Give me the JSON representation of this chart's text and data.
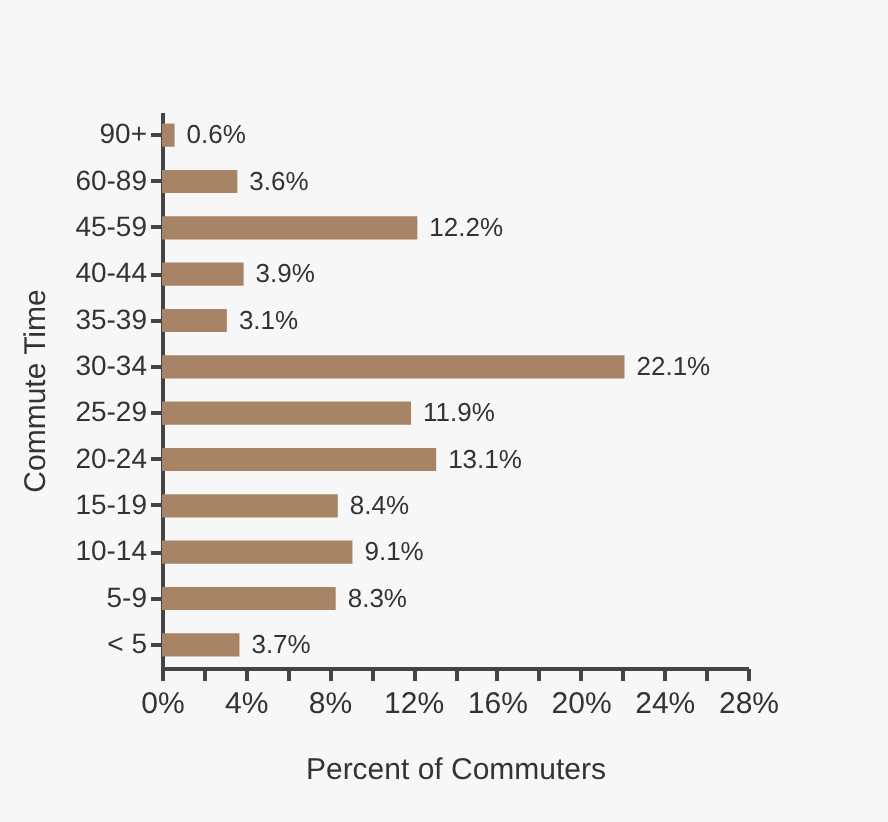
{
  "chart_data": {
    "type": "bar",
    "orientation": "horizontal",
    "xlabel": "Percent of Commuters",
    "ylabel": "Commute Time",
    "categories": [
      "90+",
      "60-89",
      "45-59",
      "40-44",
      "35-39",
      "30-34",
      "25-29",
      "20-24",
      "15-19",
      "10-14",
      "5-9",
      "< 5"
    ],
    "values": [
      0.6,
      3.6,
      12.2,
      3.9,
      3.1,
      22.1,
      11.9,
      13.1,
      8.4,
      9.1,
      8.3,
      3.7
    ],
    "value_labels": [
      "0.6%",
      "3.6%",
      "12.2%",
      "3.9%",
      "3.1%",
      "22.1%",
      "11.9%",
      "13.1%",
      "8.4%",
      "9.1%",
      "8.3%",
      "3.7%"
    ],
    "color": "#a88466",
    "xlim": [
      0,
      28
    ],
    "xticks": [
      {
        "value": 0,
        "label": "0%"
      },
      {
        "value": 2,
        "label": null
      },
      {
        "value": 4,
        "label": "4%"
      },
      {
        "value": 6,
        "label": null
      },
      {
        "value": 8,
        "label": "8%"
      },
      {
        "value": 10,
        "label": null
      },
      {
        "value": 12,
        "label": "12%"
      },
      {
        "value": 14,
        "label": null
      },
      {
        "value": 16,
        "label": "16%"
      },
      {
        "value": 18,
        "label": null
      },
      {
        "value": 20,
        "label": "20%"
      },
      {
        "value": 22,
        "label": null
      },
      {
        "value": 24,
        "label": "24%"
      },
      {
        "value": 26,
        "label": null
      },
      {
        "value": 28,
        "label": "28%"
      }
    ],
    "grid": false
  }
}
